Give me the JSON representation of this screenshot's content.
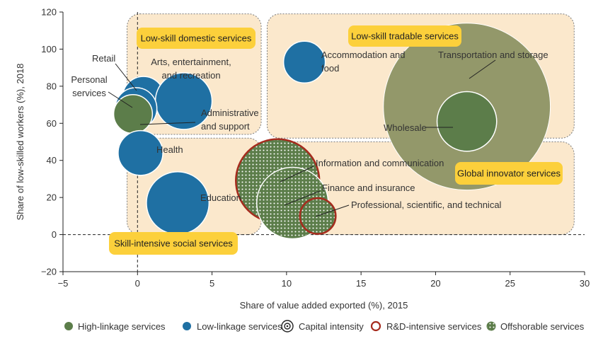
{
  "chart_data": {
    "type": "scatter",
    "xlabel": "Share of value added exported (%), 2015",
    "ylabel": "Share of low-skilled workers (%), 2018",
    "xlim": [
      -5,
      30
    ],
    "ylim": [
      -20,
      120
    ],
    "xticks": [
      "−5",
      "0",
      "5",
      "10",
      "15",
      "20",
      "25",
      "30"
    ],
    "xtick_values": [
      -5,
      0,
      5,
      10,
      15,
      20,
      25,
      30
    ],
    "yticks": [
      "−20",
      "0",
      "20",
      "40",
      "60",
      "80",
      "100",
      "120"
    ],
    "ytick_values": [
      -20,
      0,
      20,
      40,
      60,
      80,
      100,
      120
    ],
    "reference_lines": {
      "x": 0,
      "y": 0
    },
    "groups": [
      {
        "label": "Low-skill domestic services",
        "x_range": [
          -0.7,
          8.3
        ],
        "y_range": [
          54,
          119
        ]
      },
      {
        "label": "Low-skill tradable services",
        "x_range": [
          8.7,
          29.3
        ],
        "y_range": [
          52,
          119
        ]
      },
      {
        "label": "Skill-intensive social services",
        "x_range": [
          -0.7,
          8.3
        ],
        "y_range": [
          0,
          52
        ]
      },
      {
        "label": "Global innovator services",
        "x_range": [
          8.7,
          29.3
        ],
        "y_range": [
          0,
          50
        ]
      }
    ],
    "points": [
      {
        "name": "Transportation and storage",
        "x": 22.1,
        "y": 69,
        "linkage": "high",
        "capital_intensity": 28,
        "rd_intensive": false,
        "offshorable": false,
        "filled": false
      },
      {
        "name": "Wholesale",
        "x": 22.1,
        "y": 61,
        "linkage": "high",
        "capital_intensity": 10,
        "rd_intensive": false,
        "offshorable": false,
        "filled": true
      },
      {
        "name": "Accommodation and food",
        "x": 11.2,
        "y": 93,
        "linkage": "low",
        "capital_intensity": 7,
        "rd_intensive": false,
        "offshorable": false,
        "filled": true
      },
      {
        "name": "Retail",
        "x": 0.4,
        "y": 74,
        "linkage": "low",
        "capital_intensity": 7,
        "rd_intensive": false,
        "offshorable": false,
        "filled": true
      },
      {
        "name": "Arts, entertainment, and recreation",
        "x": 3.1,
        "y": 72,
        "linkage": "low",
        "capital_intensity": 9.5,
        "rd_intensive": false,
        "offshorable": false,
        "filled": true
      },
      {
        "name": "Personal services",
        "x": -0.1,
        "y": 68,
        "linkage": "low",
        "capital_intensity": 7,
        "rd_intensive": false,
        "offshorable": false,
        "filled": true
      },
      {
        "name": "Administrative and support",
        "x": -0.3,
        "y": 65,
        "linkage": "high",
        "capital_intensity": 6.5,
        "rd_intensive": false,
        "offshorable": false,
        "filled": true
      },
      {
        "name": "Health",
        "x": 0.2,
        "y": 44,
        "linkage": "low",
        "capital_intensity": 7.5,
        "rd_intensive": false,
        "offshorable": false,
        "filled": true
      },
      {
        "name": "Education",
        "x": 2.7,
        "y": 17,
        "linkage": "low",
        "capital_intensity": 10.5,
        "rd_intensive": false,
        "offshorable": false,
        "filled": true
      },
      {
        "name": "Information and communication",
        "x": 9.4,
        "y": 29,
        "linkage": "high",
        "capital_intensity": 14,
        "rd_intensive": true,
        "offshorable": true,
        "filled": true
      },
      {
        "name": "Finance and insurance",
        "x": 10.4,
        "y": 17,
        "linkage": "high",
        "capital_intensity": 12,
        "rd_intensive": false,
        "offshorable": true,
        "filled": true
      },
      {
        "name": "Professional, scientific, and technical",
        "x": 12.1,
        "y": 10,
        "linkage": "high",
        "capital_intensity": 6,
        "rd_intensive": true,
        "offshorable": true,
        "filled": true
      }
    ],
    "annotations": [
      {
        "text": "Retail",
        "lines": [
          "Retail"
        ]
      },
      {
        "text": "Arts, entertainment, and recreation",
        "lines": [
          "Arts, entertainment,",
          "and recreation"
        ]
      },
      {
        "text": "Personal services",
        "lines": [
          "Personal",
          "services"
        ]
      },
      {
        "text": "Administrative and support",
        "lines": [
          "Administrative",
          "and support"
        ]
      },
      {
        "text": "Accommodation and food",
        "lines": [
          "Accommodation and",
          "food"
        ]
      },
      {
        "text": "Transportation and storage",
        "lines": [
          "Transportation and storage"
        ]
      },
      {
        "text": "Wholesale",
        "lines": [
          "Wholesale"
        ]
      },
      {
        "text": "Health",
        "lines": [
          "Health"
        ]
      },
      {
        "text": "Education",
        "lines": [
          "Education"
        ]
      },
      {
        "text": "Information and communication",
        "lines": [
          "Information and communication"
        ]
      },
      {
        "text": "Finance and insurance",
        "lines": [
          "Finance and insurance"
        ]
      },
      {
        "text": "Professional, scientific, and technical",
        "lines": [
          "Professional, scientific, and technical"
        ]
      }
    ],
    "legend": {
      "placement": "bottom",
      "items": [
        {
          "label": "High-linkage services",
          "icon": "high-linkage-dot"
        },
        {
          "label": "Low-linkage services",
          "icon": "low-linkage-dot"
        },
        {
          "label": "Capital intensity",
          "icon": "capital-intensity-rings"
        },
        {
          "label": "R&D-intensive services",
          "icon": "rd-ring"
        },
        {
          "label": "Offshorable services",
          "icon": "offshorable-dots"
        }
      ]
    },
    "colors": {
      "high_linkage": "#5c7d4a",
      "low_linkage": "#1f70a3",
      "rd_outline": "#a62b1e",
      "group_fill": "#fbe8cc",
      "group_label_fill": "#fcd03b",
      "transport_fill": "#93986a"
    }
  }
}
